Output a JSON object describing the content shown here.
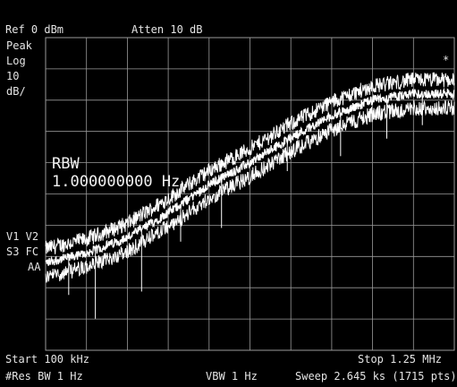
{
  "header": {
    "ref_level": "Ref 0 dBm",
    "attenuation": "Atten 10 dB"
  },
  "left_panel": {
    "detector": "Peak",
    "scale_type": "Log",
    "scale_value": "10",
    "scale_unit": "dB/",
    "trace_flags_1": "V1 V2",
    "trace_flags_2": "S3 FC",
    "trace_flags_3": "AA"
  },
  "marker_flag": "*",
  "annotation": {
    "label": "RBW",
    "value": "1.000000000  Hz"
  },
  "footer": {
    "start": "Start 100 kHz",
    "stop": "Stop 1.25 MHz",
    "res_bw": "#Res BW 1 Hz",
    "vbw": "VBW 1 Hz",
    "sweep": "Sweep 2.645 ks (1715 pts)"
  },
  "colors": {
    "background": "#000000",
    "grid": "#9a9a9a",
    "trace": "#ffffff",
    "text": "#e4e4e4"
  },
  "chart_data": {
    "type": "line",
    "x_range_khz": [
      100,
      1250
    ],
    "ylim_dbm": [
      0,
      -100
    ],
    "grid": true,
    "points_count": 1715,
    "series": [
      {
        "x_khz": [
          100,
          215,
          330,
          445,
          560,
          675,
          790,
          905,
          1020,
          1135,
          1250
        ],
        "y_dbm": [
          -72,
          -69,
          -64,
          -56,
          -47,
          -40,
          -32,
          -25,
          -20,
          -18,
          -18
        ]
      }
    ]
  }
}
